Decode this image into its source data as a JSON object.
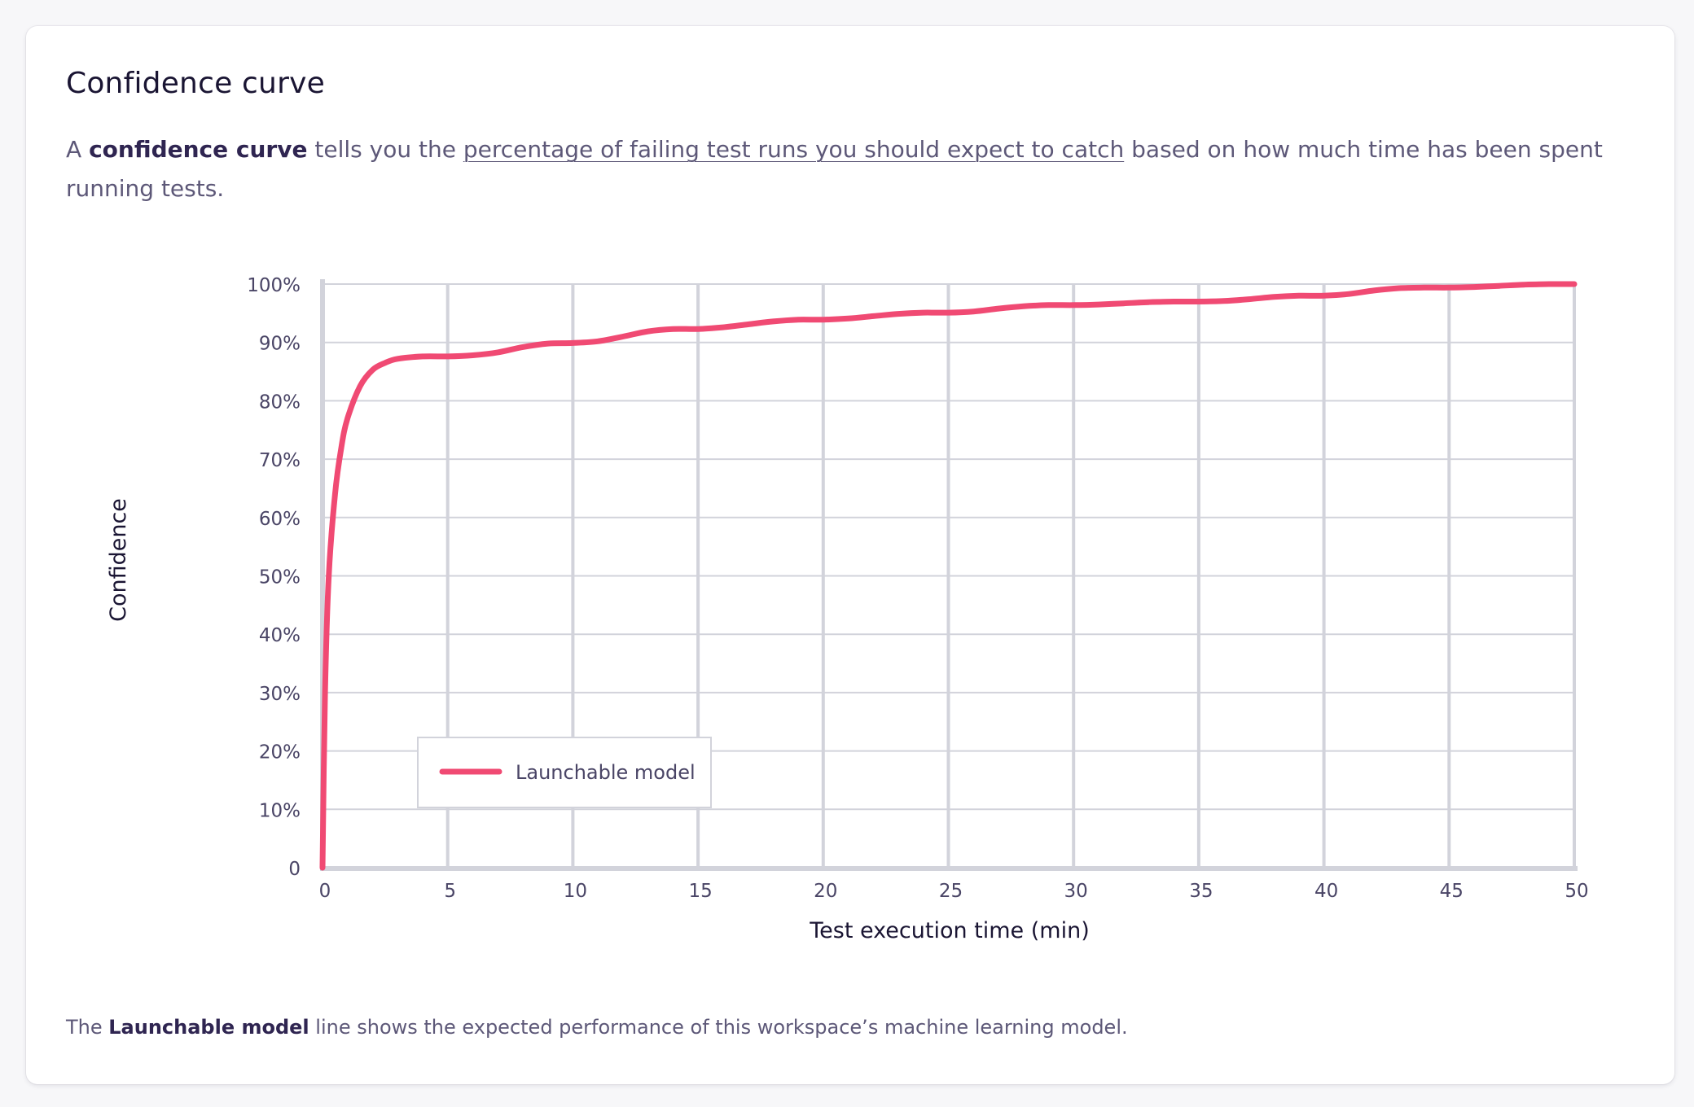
{
  "card": {
    "title": "Confidence curve",
    "intro": {
      "lead": "A ",
      "bold": "confidence curve",
      "middle": " tells you the ",
      "link": "percentage of failing test runs you should expect to catch",
      "tail": " based on how much time has been spent running tests."
    },
    "footer": {
      "lead": "The ",
      "bold": "Launchable model",
      "tail": " line shows the expected performance of this workspace’s machine learning model."
    }
  },
  "chart_data": {
    "type": "line",
    "xlabel": "Test execution time (min)",
    "ylabel": "Confidence",
    "xlim": [
      0,
      50
    ],
    "ylim": [
      0,
      100
    ],
    "x_ticks": [
      "0",
      "5",
      "10",
      "15",
      "20",
      "25",
      "30",
      "35",
      "40",
      "45",
      "50"
    ],
    "y_ticks": [
      "0",
      "10%",
      "20%",
      "30%",
      "40%",
      "50%",
      "60%",
      "70%",
      "80%",
      "90%",
      "100%"
    ],
    "grid": true,
    "legend_position": "bottom-left",
    "series": [
      {
        "name": "Launchable model",
        "color": "#f04a73",
        "x": [
          0,
          0.1,
          0.25,
          0.5,
          0.75,
          1,
          1.5,
          2,
          2.5,
          3,
          4,
          5,
          6,
          7,
          8,
          9,
          10,
          11,
          12,
          13,
          14,
          15,
          16,
          17,
          18,
          19,
          20,
          21,
          22,
          23,
          24,
          25,
          26,
          27,
          28,
          29,
          30,
          31,
          32,
          33,
          34,
          35,
          36,
          37,
          38,
          39,
          40,
          41,
          42,
          43,
          44,
          45,
          46,
          47,
          48,
          49,
          50
        ],
        "y": [
          0,
          30,
          50,
          64,
          72,
          77,
          82.5,
          85.3,
          86.5,
          87.2,
          87.6,
          87.6,
          87.8,
          88.3,
          89.2,
          89.8,
          89.9,
          90.2,
          91,
          91.9,
          92.3,
          92.3,
          92.6,
          93.1,
          93.6,
          93.9,
          93.9,
          94.1,
          94.5,
          94.9,
          95.1,
          95.1,
          95.3,
          95.8,
          96.2,
          96.4,
          96.4,
          96.5,
          96.7,
          96.9,
          97,
          97,
          97.1,
          97.4,
          97.8,
          98,
          98,
          98.3,
          98.9,
          99.3,
          99.4,
          99.4,
          99.5,
          99.7,
          99.9,
          100,
          100
        ]
      }
    ]
  }
}
